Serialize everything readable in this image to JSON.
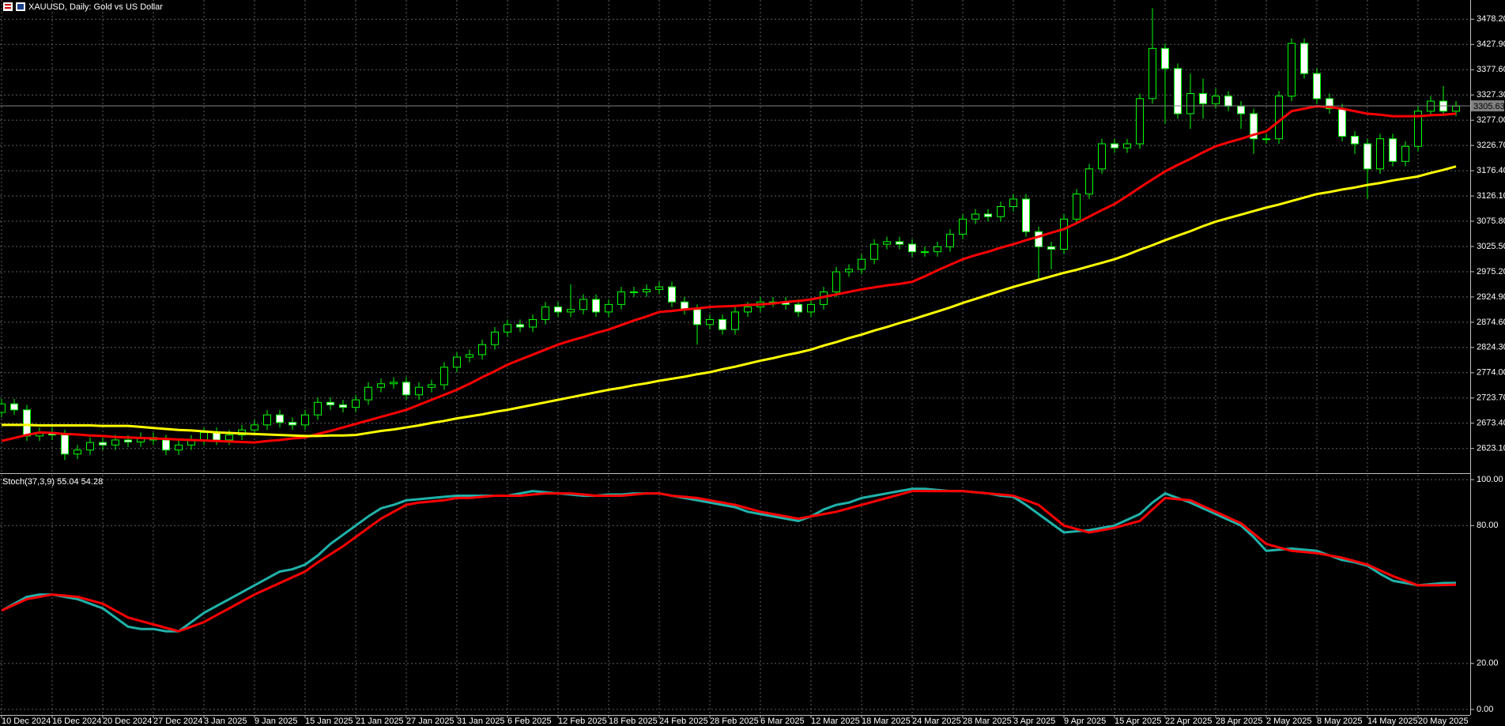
{
  "chart_data": [
    {
      "type": "candlestick",
      "title": "XAUUSD, Daily:  Gold vs US Dollar",
      "categories": [
        "10 Dec 2024",
        null,
        null,
        null,
        "16 Dec 2024",
        null,
        null,
        null,
        "20 Dec 2024",
        null,
        null,
        null,
        "27 Dec 2024",
        null,
        null,
        null,
        "3 Jan 2025",
        null,
        null,
        null,
        "9 Jan 2025",
        null,
        null,
        null,
        "15 Jan 2025",
        null,
        null,
        null,
        "21 Jan 2025",
        null,
        null,
        null,
        "27 Jan 2025",
        null,
        null,
        null,
        "31 Jan 2025",
        null,
        null,
        null,
        "6 Feb 2025",
        null,
        null,
        null,
        "12 Feb 2025",
        null,
        null,
        null,
        "18 Feb 2025",
        null,
        null,
        null,
        "24 Feb 2025",
        null,
        null,
        null,
        "28 Feb 2025",
        null,
        null,
        null,
        "6 Mar 2025",
        null,
        null,
        null,
        "12 Mar 2025",
        null,
        null,
        null,
        "18 Mar 2025",
        null,
        null,
        null,
        "24 Mar 2025",
        null,
        null,
        null,
        "28 Mar 2025",
        null,
        null,
        null,
        "3 Apr 2025",
        null,
        null,
        null,
        "9 Apr 2025",
        null,
        null,
        null,
        "15 Apr 2025",
        null,
        null,
        null,
        "22 Apr 2025",
        null,
        null,
        null,
        "28 Apr 2025",
        null,
        null,
        null,
        "2 May 2025",
        null,
        null,
        null,
        "8 May 2025",
        null,
        null,
        null,
        "14 May 2025",
        null,
        null,
        null,
        "20 May 2025",
        null,
        null,
        null
      ],
      "open": [
        2695,
        2712,
        2700,
        2648,
        2655,
        2650,
        2612,
        2620,
        2635,
        2630,
        2640,
        2636,
        2645,
        2640,
        2620,
        2630,
        2640,
        2655,
        2640,
        2650,
        2660,
        2670,
        2690,
        2675,
        2670,
        2690,
        2715,
        2710,
        2705,
        2720,
        2745,
        2752,
        2755,
        2730,
        2745,
        2750,
        2785,
        2805,
        2810,
        2830,
        2855,
        2870,
        2865,
        2880,
        2905,
        2895,
        2900,
        2920,
        2895,
        2910,
        2935,
        2935,
        2940,
        2945,
        2915,
        2900,
        2870,
        2880,
        2860,
        2895,
        2905,
        2915,
        2915,
        2910,
        2895,
        2910,
        2935,
        2975,
        2980,
        3000,
        3030,
        3035,
        3030,
        3015,
        3015,
        3025,
        3050,
        3080,
        3090,
        3085,
        3105,
        3120,
        3055,
        3025,
        3020,
        3080,
        3130,
        3180,
        3230,
        3222,
        3230,
        3320,
        3420,
        3380,
        3290,
        3330,
        3310,
        3325,
        3305,
        3290,
        3240,
        3240,
        3325,
        3430,
        3370,
        3320,
        3300,
        3245,
        3230,
        3180,
        3240,
        3195,
        3225,
        3295,
        3315,
        3295
      ],
      "high": [
        2722,
        2722,
        2710,
        2665,
        2665,
        2660,
        2630,
        2645,
        2645,
        2650,
        2650,
        2655,
        2655,
        2650,
        2640,
        2650,
        2665,
        2665,
        2660,
        2670,
        2680,
        2700,
        2700,
        2685,
        2700,
        2725,
        2725,
        2720,
        2730,
        2755,
        2762,
        2765,
        2765,
        2755,
        2760,
        2795,
        2815,
        2820,
        2840,
        2865,
        2880,
        2880,
        2890,
        2915,
        2915,
        2950,
        2930,
        2930,
        2920,
        2945,
        2945,
        2950,
        2955,
        2955,
        2925,
        2910,
        2890,
        2890,
        2905,
        2915,
        2925,
        2925,
        2925,
        2920,
        2920,
        2945,
        2985,
        2990,
        3010,
        3040,
        3045,
        3045,
        3040,
        3025,
        3035,
        3060,
        3090,
        3100,
        3100,
        3115,
        3130,
        3130,
        3065,
        3035,
        3090,
        3140,
        3190,
        3240,
        3240,
        3240,
        3330,
        3500,
        3430,
        3390,
        3370,
        3360,
        3340,
        3335,
        3315,
        3300,
        3250,
        3335,
        3440,
        3440,
        3380,
        3330,
        3310,
        3255,
        3240,
        3250,
        3250,
        3235,
        3305,
        3325,
        3345,
        3315
      ],
      "low": [
        2685,
        2690,
        2638,
        2638,
        2640,
        2600,
        2602,
        2610,
        2620,
        2620,
        2626,
        2626,
        2630,
        2610,
        2610,
        2620,
        2630,
        2630,
        2630,
        2640,
        2650,
        2660,
        2665,
        2660,
        2660,
        2680,
        2700,
        2695,
        2695,
        2710,
        2735,
        2742,
        2720,
        2720,
        2735,
        2740,
        2775,
        2795,
        2800,
        2820,
        2845,
        2855,
        2855,
        2870,
        2885,
        2885,
        2890,
        2885,
        2885,
        2900,
        2925,
        2925,
        2930,
        2905,
        2890,
        2830,
        2860,
        2850,
        2850,
        2885,
        2895,
        2905,
        2900,
        2885,
        2885,
        2900,
        2925,
        2965,
        2970,
        2990,
        3020,
        3020,
        3005,
        3005,
        3005,
        3015,
        3040,
        3070,
        3075,
        3075,
        3095,
        3045,
        2960,
        2980,
        3010,
        3070,
        3120,
        3170,
        3212,
        3212,
        3220,
        3310,
        3270,
        3280,
        3260,
        3280,
        3300,
        3295,
        3260,
        3210,
        3230,
        3230,
        3315,
        3360,
        3310,
        3290,
        3235,
        3210,
        3120,
        3170,
        3185,
        3185,
        3215,
        3285,
        3285,
        3285
      ],
      "close": [
        2712,
        2700,
        2648,
        2655,
        2650,
        2612,
        2620,
        2635,
        2630,
        2640,
        2636,
        2645,
        2640,
        2620,
        2630,
        2640,
        2655,
        2640,
        2650,
        2660,
        2670,
        2690,
        2675,
        2670,
        2690,
        2715,
        2710,
        2705,
        2720,
        2745,
        2752,
        2755,
        2730,
        2745,
        2750,
        2785,
        2805,
        2810,
        2830,
        2855,
        2870,
        2865,
        2880,
        2905,
        2895,
        2900,
        2920,
        2895,
        2910,
        2935,
        2935,
        2940,
        2945,
        2915,
        2900,
        2870,
        2880,
        2860,
        2895,
        2905,
        2915,
        2915,
        2910,
        2895,
        2910,
        2935,
        2975,
        2980,
        3000,
        3030,
        3035,
        3030,
        3015,
        3015,
        3025,
        3050,
        3080,
        3090,
        3085,
        3105,
        3120,
        3055,
        3025,
        3020,
        3080,
        3130,
        3180,
        3230,
        3222,
        3230,
        3320,
        3420,
        3380,
        3290,
        3330,
        3310,
        3325,
        3305,
        3290,
        3240,
        3240,
        3325,
        3430,
        3370,
        3320,
        3300,
        3245,
        3230,
        3180,
        3240,
        3195,
        3225,
        3295,
        3315,
        3295,
        3305
      ],
      "outline": "#00ff00",
      "bull_fill": "#000000",
      "bear_fill": "#ffffff",
      "overlays": [
        {
          "color": "#ff0000",
          "values": [
            2638,
            2644,
            2650,
            2655,
            2654,
            2652,
            2651,
            2649,
            2648,
            2646,
            2645,
            2644,
            2643,
            2642,
            2641,
            2640,
            2639,
            2638,
            2637,
            2636,
            2635,
            2638,
            2640,
            2643,
            2645,
            2652,
            2658,
            2665,
            2672,
            2679,
            2686,
            2693,
            2700,
            2710,
            2720,
            2730,
            2740,
            2752,
            2765,
            2777,
            2790,
            2800,
            2810,
            2820,
            2830,
            2838,
            2845,
            2853,
            2860,
            2869,
            2878,
            2886,
            2895,
            2897,
            2900,
            2902,
            2905,
            2906,
            2907,
            2909,
            2910,
            2912,
            2915,
            2917,
            2920,
            2925,
            2930,
            2935,
            2940,
            2944,
            2948,
            2951,
            2955,
            2966,
            2978,
            2989,
            3000,
            3008,
            3015,
            3023,
            3030,
            3038,
            3045,
            3053,
            3060,
            3072,
            3085,
            3098,
            3110,
            3126,
            3143,
            3159,
            3175,
            3188,
            3200,
            3213,
            3225,
            3233,
            3240,
            3248,
            3255,
            3275,
            3295,
            3300,
            3305,
            3303,
            3300,
            3295,
            3290,
            3288,
            3285,
            3285,
            3285,
            3287,
            3288,
            3290
          ]
        },
        {
          "color": "#ffff00",
          "values": [
            2670,
            2670,
            2670,
            2669,
            2669,
            2669,
            2669,
            2669,
            2668,
            2668,
            2668,
            2666,
            2664,
            2662,
            2660,
            2659,
            2657,
            2655,
            2654,
            2653,
            2652,
            2651,
            2650,
            2649,
            2648,
            2648,
            2649,
            2649,
            2650,
            2654,
            2658,
            2661,
            2665,
            2669,
            2674,
            2678,
            2683,
            2687,
            2691,
            2696,
            2700,
            2705,
            2710,
            2715,
            2720,
            2725,
            2730,
            2735,
            2740,
            2744,
            2749,
            2753,
            2758,
            2762,
            2766,
            2771,
            2775,
            2781,
            2786,
            2792,
            2798,
            2803,
            2809,
            2814,
            2820,
            2828,
            2835,
            2843,
            2850,
            2858,
            2865,
            2873,
            2880,
            2888,
            2896,
            2904,
            2913,
            2921,
            2929,
            2937,
            2945,
            2952,
            2959,
            2966,
            2973,
            2979,
            2986,
            2993,
            3000,
            3009,
            3019,
            3028,
            3038,
            3047,
            3056,
            3066,
            3075,
            3082,
            3089,
            3096,
            3103,
            3109,
            3116,
            3123,
            3130,
            3134,
            3139,
            3143,
            3148,
            3152,
            3157,
            3161,
            3165,
            3172,
            3178,
            3185
          ]
        }
      ],
      "last_price": 3305.63,
      "last_price_color": "#808080",
      "ylim": [
        2575.4,
        3516.5
      ],
      "yticks": [
        {
          "value": 3478.2,
          "label": "3478.20"
        },
        {
          "value": 3427.9,
          "label": "3427.90"
        },
        {
          "value": 3377.6,
          "label": "3377.60"
        },
        {
          "value": 3327.3,
          "label": "3327.30"
        },
        {
          "value": 3277.0,
          "label": "3277.00"
        },
        {
          "value": 3226.7,
          "label": "3226.70"
        },
        {
          "value": 3176.4,
          "label": "3176.40"
        },
        {
          "value": 3126.1,
          "label": "3126.10"
        },
        {
          "value": 3075.8,
          "label": "3075.80"
        },
        {
          "value": 3025.5,
          "label": "3025.50"
        },
        {
          "value": 2975.2,
          "label": "2975.20"
        },
        {
          "value": 2924.9,
          "label": "2924.90"
        },
        {
          "value": 2874.6,
          "label": "2874.60"
        },
        {
          "value": 2824.3,
          "label": "2824.30"
        },
        {
          "value": 2774.0,
          "label": "2774.00"
        },
        {
          "value": 2723.7,
          "label": "2723.70"
        },
        {
          "value": 2673.4,
          "label": "2673.40"
        },
        {
          "value": 2623.1,
          "label": "2623.10"
        }
      ],
      "grid": true
    },
    {
      "type": "line",
      "title": "Stoch(37,3,9) 55.04 54.28",
      "series": [
        {
          "color": "#20b2aa",
          "values": [
            43,
            46,
            49,
            50,
            50,
            49,
            48,
            46,
            44,
            40,
            36,
            35,
            35,
            34,
            34,
            38,
            42,
            45,
            48,
            51,
            54,
            57,
            60,
            61,
            63,
            67,
            72,
            76,
            80,
            84,
            87.5,
            89,
            91,
            91.5,
            92,
            92.5,
            93,
            93,
            93,
            93,
            93,
            94,
            95,
            94.5,
            94,
            93.5,
            93,
            93,
            93.5,
            93.5,
            94,
            94,
            94,
            93,
            92,
            91,
            90,
            89,
            88,
            86,
            85,
            84,
            83,
            82,
            84,
            87,
            89,
            90,
            92,
            93,
            94,
            95,
            96,
            96,
            95.5,
            95,
            95,
            94.5,
            94,
            93,
            92.5,
            89,
            85,
            81,
            77,
            77.5,
            78,
            79,
            80,
            82.5,
            85,
            90,
            94,
            92,
            90,
            87.5,
            85,
            82.5,
            80,
            75,
            69,
            69.5,
            70,
            69.5,
            69,
            67,
            65,
            64,
            62.5,
            59,
            56,
            55,
            54,
            54.5,
            55,
            55.04
          ]
        },
        {
          "color": "#ff0000",
          "values": [
            43,
            45.5,
            48,
            49,
            50,
            49.5,
            49,
            47.5,
            46,
            43,
            40,
            38.5,
            37,
            35.5,
            34,
            36,
            38,
            41,
            44,
            47,
            50,
            52.5,
            55,
            57.5,
            60,
            64,
            67.5,
            71,
            75,
            79,
            83,
            86,
            89,
            90,
            90.5,
            91,
            92,
            92,
            92.5,
            93,
            93,
            93,
            93.5,
            94,
            94,
            94,
            93.5,
            93,
            93,
            93,
            93.5,
            94,
            94,
            93,
            92.5,
            92,
            91,
            90,
            89,
            87.5,
            86,
            85,
            84,
            83,
            84,
            85,
            86,
            87.5,
            89,
            90.5,
            92,
            93.5,
            95,
            95,
            95,
            95,
            95,
            94.5,
            94,
            93.5,
            93,
            91,
            89,
            84.5,
            80,
            78.5,
            77,
            78,
            79,
            80.5,
            82,
            87,
            92,
            91.5,
            91,
            88.5,
            86,
            83.5,
            81,
            76.5,
            72,
            70.5,
            69,
            68.5,
            68,
            67,
            66,
            64.5,
            63,
            60.5,
            58,
            56,
            54,
            54,
            54.1,
            54.28
          ]
        }
      ],
      "ylim": [
        -2.4,
        102.1
      ],
      "yticks": [
        {
          "value": 100,
          "label": "100.00"
        },
        {
          "value": 80,
          "label": "80.00"
        },
        {
          "value": 20,
          "label": "20.00"
        },
        {
          "value": 0,
          "label": "0.00"
        }
      ],
      "grid": true
    }
  ]
}
